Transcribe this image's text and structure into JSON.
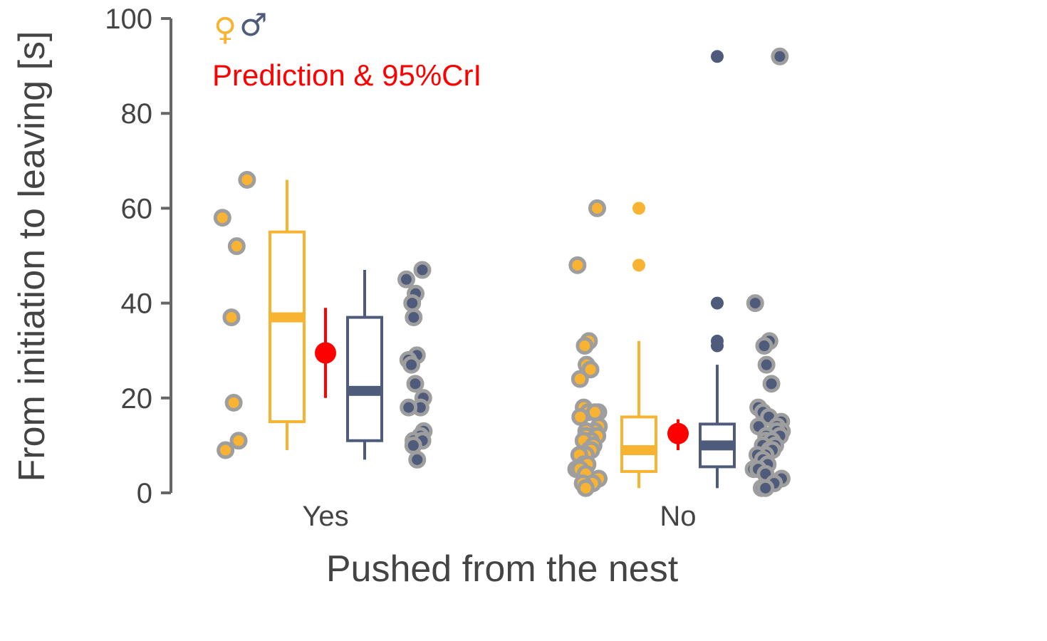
{
  "chart_data": {
    "type": "box",
    "xlabel": "Pushed from the nest",
    "ylabel": "From initiation to leaving [s]",
    "ylim": [
      0,
      100
    ],
    "yticks": [
      0,
      20,
      40,
      60,
      80,
      100
    ],
    "categories": [
      "Yes",
      "No"
    ],
    "legend": {
      "female_symbol": "♀",
      "male_symbol": "♂",
      "prediction_label": "Prediction & 95%CrI",
      "placement": "top-left"
    },
    "colors": {
      "female": "#F8B332",
      "male": "#4E5B7A",
      "prediction": "#FF0000",
      "point_outline": "#9E9E9E",
      "axis": "#666666",
      "text": "#444444"
    },
    "groups": [
      {
        "category": "Yes",
        "female": {
          "box": {
            "q1": 15,
            "median": 37,
            "q3": 55,
            "whisker_low": 9,
            "whisker_high": 66
          },
          "outliers": [],
          "points": [
            66,
            58,
            52,
            37,
            19,
            11,
            9
          ]
        },
        "prediction": {
          "value": 29.5,
          "low": 20,
          "high": 39
        },
        "male": {
          "box": {
            "q1": 11,
            "median": 21.5,
            "q3": 37,
            "whisker_low": 7,
            "whisker_high": 47
          },
          "outliers": [],
          "points": [
            47,
            45,
            42,
            40,
            37,
            29,
            28,
            27,
            23,
            20,
            18,
            18,
            13,
            12,
            11,
            11,
            10,
            7
          ]
        }
      },
      {
        "category": "No",
        "female": {
          "box": {
            "q1": 4.5,
            "median": 9,
            "q3": 16,
            "whisker_low": 1,
            "whisker_high": 32
          },
          "outliers": [
            60,
            48
          ],
          "points": [
            60,
            48,
            32,
            31,
            27,
            26,
            24,
            18,
            17,
            17,
            17,
            16,
            14,
            13,
            13,
            12,
            12,
            11,
            11,
            10,
            9,
            9,
            8,
            8,
            6,
            6,
            5,
            5,
            4,
            3,
            2,
            2,
            1
          ]
        },
        "prediction": {
          "value": 12.5,
          "low": 9,
          "high": 15.5
        },
        "male": {
          "box": {
            "q1": 5.5,
            "median": 10,
            "q3": 14.5,
            "whisker_low": 1,
            "whisker_high": 27
          },
          "outliers": [
            92,
            40,
            32,
            31
          ],
          "points": [
            92,
            40,
            32,
            31,
            27,
            23,
            18,
            17,
            16,
            15,
            14,
            14,
            13,
            13,
            12,
            12,
            11,
            11,
            10,
            10,
            9,
            9,
            8,
            8,
            7,
            6,
            5,
            5,
            4,
            3,
            2,
            1,
            1
          ]
        }
      }
    ]
  }
}
